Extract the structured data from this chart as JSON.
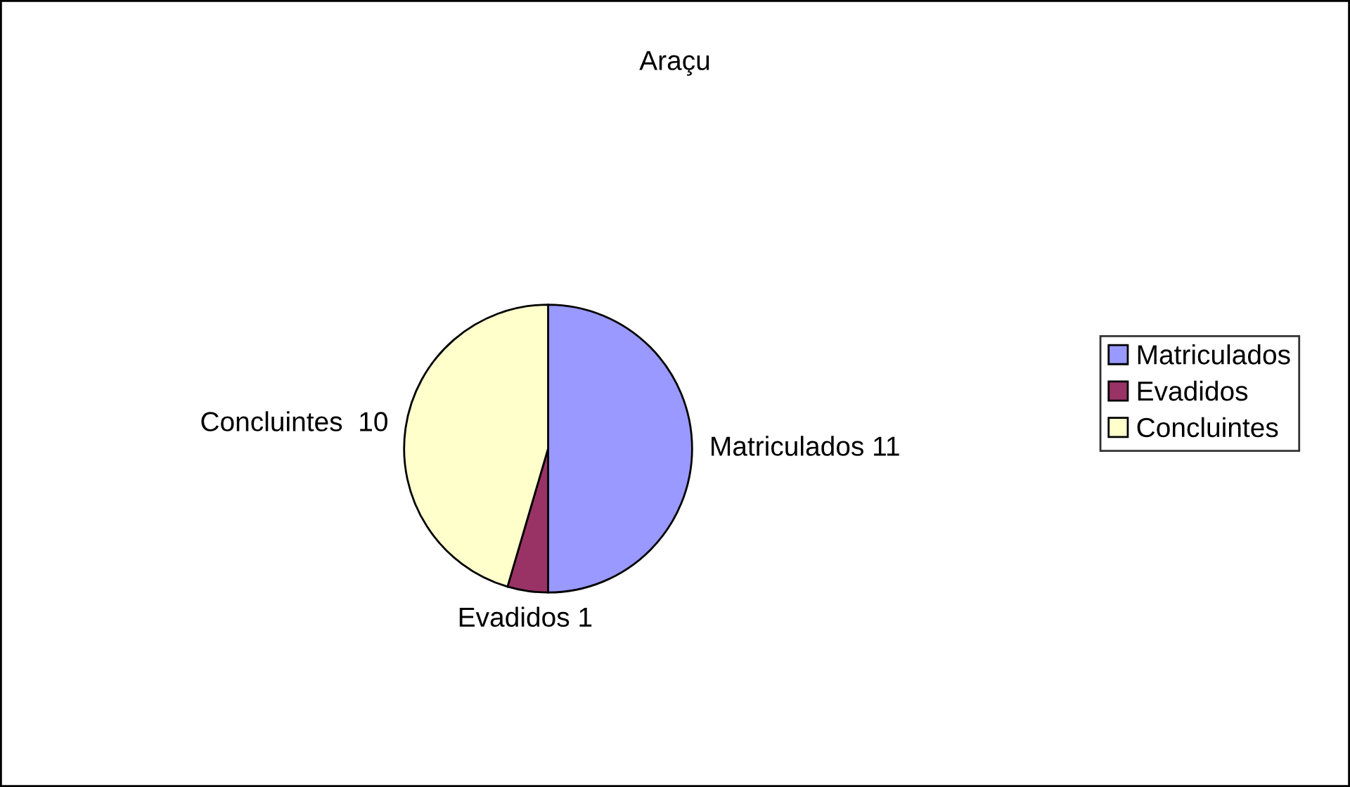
{
  "chart_data": {
    "type": "pie",
    "title": "Araçu",
    "categories": [
      "Matriculados",
      "Evadidos",
      "Concluintes"
    ],
    "values": [
      11,
      1,
      10
    ],
    "colors": [
      "#9999ff",
      "#993366",
      "#ffffcc"
    ],
    "value_labels": [
      "Matriculados 11",
      "Evadidos 1",
      "Concluintes  10"
    ],
    "legend": "right"
  }
}
